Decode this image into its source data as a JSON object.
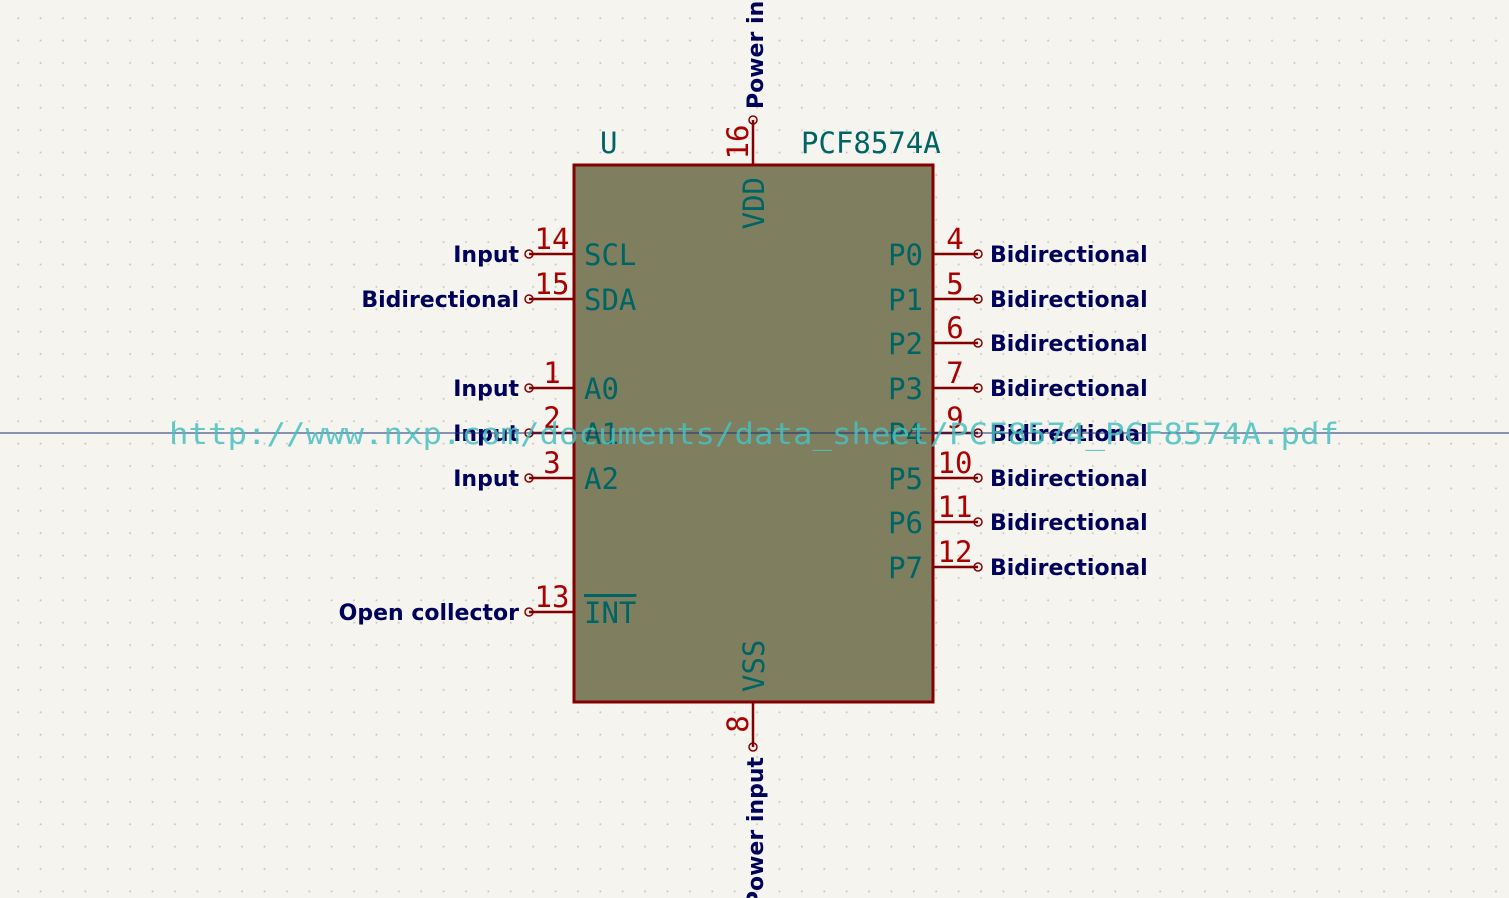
{
  "symbol": {
    "reference": "U",
    "value": "PCF8574A",
    "datasheet": "http://www.nxp.com/documents/data_sheet/PCF8574_PCF8574A.pdf"
  },
  "colors": {
    "background": "#f5f4ef",
    "body_fill": "#7f7f5f",
    "body_outline": "#840000",
    "pin_line": "#840000",
    "pin_number": "#a90000",
    "pin_name": "#006464",
    "field_text": "#006464",
    "electrical_type": "#00005a",
    "datasheet": "#48c0c0",
    "crosshair": "#1a2f70"
  },
  "pins": {
    "vdd": {
      "name": "VDD",
      "number": "16",
      "type": "Power input"
    },
    "vss": {
      "name": "VSS",
      "number": "8",
      "type": "Power input"
    },
    "scl": {
      "name": "SCL",
      "number": "14",
      "type": "Input"
    },
    "sda": {
      "name": "SDA",
      "number": "15",
      "type": "Bidirectional"
    },
    "a0": {
      "name": "A0",
      "number": "1",
      "type": "Input"
    },
    "a1": {
      "name": "A1",
      "number": "2",
      "type": "Input"
    },
    "a2": {
      "name": "A2",
      "number": "3",
      "type": "Input"
    },
    "int": {
      "name": "INT",
      "number": "13",
      "type": "Open collector"
    },
    "p0": {
      "name": "P0",
      "number": "4",
      "type": "Bidirectional"
    },
    "p1": {
      "name": "P1",
      "number": "5",
      "type": "Bidirectional"
    },
    "p2": {
      "name": "P2",
      "number": "6",
      "type": "Bidirectional"
    },
    "p3": {
      "name": "P3",
      "number": "7",
      "type": "Bidirectional"
    },
    "p4": {
      "name": "P4",
      "number": "9",
      "type": "Bidirectional"
    },
    "p5": {
      "name": "P5",
      "number": "10",
      "type": "Bidirectional"
    },
    "p6": {
      "name": "P6",
      "number": "11",
      "type": "Bidirectional"
    },
    "p7": {
      "name": "P7",
      "number": "12",
      "type": "Bidirectional"
    }
  }
}
